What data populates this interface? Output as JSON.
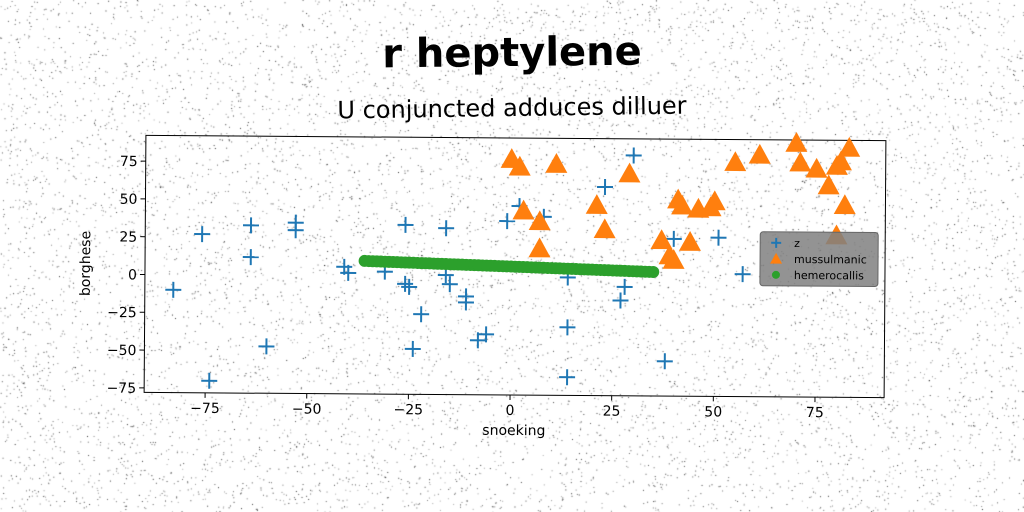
{
  "chart_data": {
    "type": "scatter",
    "title": "r heptylene",
    "subtitle": "U conjuncted adduces dilluer",
    "xlabel": "snoeking",
    "ylabel": "borghese",
    "xlim": [
      -90,
      92
    ],
    "ylim": [
      -78,
      92
    ],
    "xticks": [
      -75,
      -50,
      -25,
      0,
      25,
      50,
      75
    ],
    "yticks": [
      -75,
      -50,
      -25,
      0,
      25,
      50,
      75
    ],
    "grid": false,
    "legend_position": "center-right",
    "series": [
      {
        "name": "z",
        "marker": "plus",
        "color": "#1f77b4",
        "points": [
          [
            -83,
            -10
          ],
          [
            -76,
            27
          ],
          [
            -74,
            -70
          ],
          [
            -64,
            33
          ],
          [
            -64,
            12
          ],
          [
            -60,
            -47
          ],
          [
            -53,
            35
          ],
          [
            -53,
            30
          ],
          [
            -41,
            6
          ],
          [
            -40,
            2
          ],
          [
            -31,
            3
          ],
          [
            -26,
            -5
          ],
          [
            -26,
            34
          ],
          [
            -25,
            -7
          ],
          [
            -24,
            -48
          ],
          [
            -22,
            -25
          ],
          [
            -16,
            1
          ],
          [
            -16,
            32
          ],
          [
            -15,
            -5
          ],
          [
            -11,
            -13
          ],
          [
            -11,
            -17
          ],
          [
            -8,
            -42
          ],
          [
            -6,
            -38
          ],
          [
            -1,
            37
          ],
          [
            2,
            47
          ],
          [
            8,
            40
          ],
          [
            14,
            0
          ],
          [
            14,
            -33
          ],
          [
            14,
            -66
          ],
          [
            23,
            60
          ],
          [
            27,
            -15
          ],
          [
            28,
            -6
          ],
          [
            30,
            81
          ],
          [
            38,
            -55
          ],
          [
            40,
            26
          ],
          [
            51,
            27
          ],
          [
            57,
            3
          ]
        ]
      },
      {
        "name": "mussulmanic",
        "marker": "triangle",
        "color": "#ff7f0e",
        "points": [
          [
            0,
            78
          ],
          [
            2,
            73
          ],
          [
            3,
            44
          ],
          [
            7,
            37
          ],
          [
            7,
            19
          ],
          [
            11,
            75
          ],
          [
            21,
            48
          ],
          [
            23,
            32
          ],
          [
            29,
            69
          ],
          [
            37,
            25
          ],
          [
            39,
            15
          ],
          [
            40,
            12
          ],
          [
            41,
            52
          ],
          [
            42,
            48
          ],
          [
            44,
            24
          ],
          [
            46,
            46
          ],
          [
            49,
            47
          ],
          [
            50,
            51
          ],
          [
            55,
            77
          ],
          [
            61,
            82
          ],
          [
            70,
            90
          ],
          [
            71,
            77
          ],
          [
            75,
            73
          ],
          [
            78,
            62
          ],
          [
            80,
            75
          ],
          [
            81,
            78
          ],
          [
            82,
            49
          ],
          [
            83,
            87
          ],
          [
            80,
            29
          ]
        ]
      },
      {
        "name": "hemerocallis",
        "marker": "circle",
        "color": "#2ca02c",
        "line": {
          "x_start": -36,
          "x_end": 35,
          "y_start": 10,
          "y_end": 4,
          "count": 72
        }
      }
    ]
  }
}
